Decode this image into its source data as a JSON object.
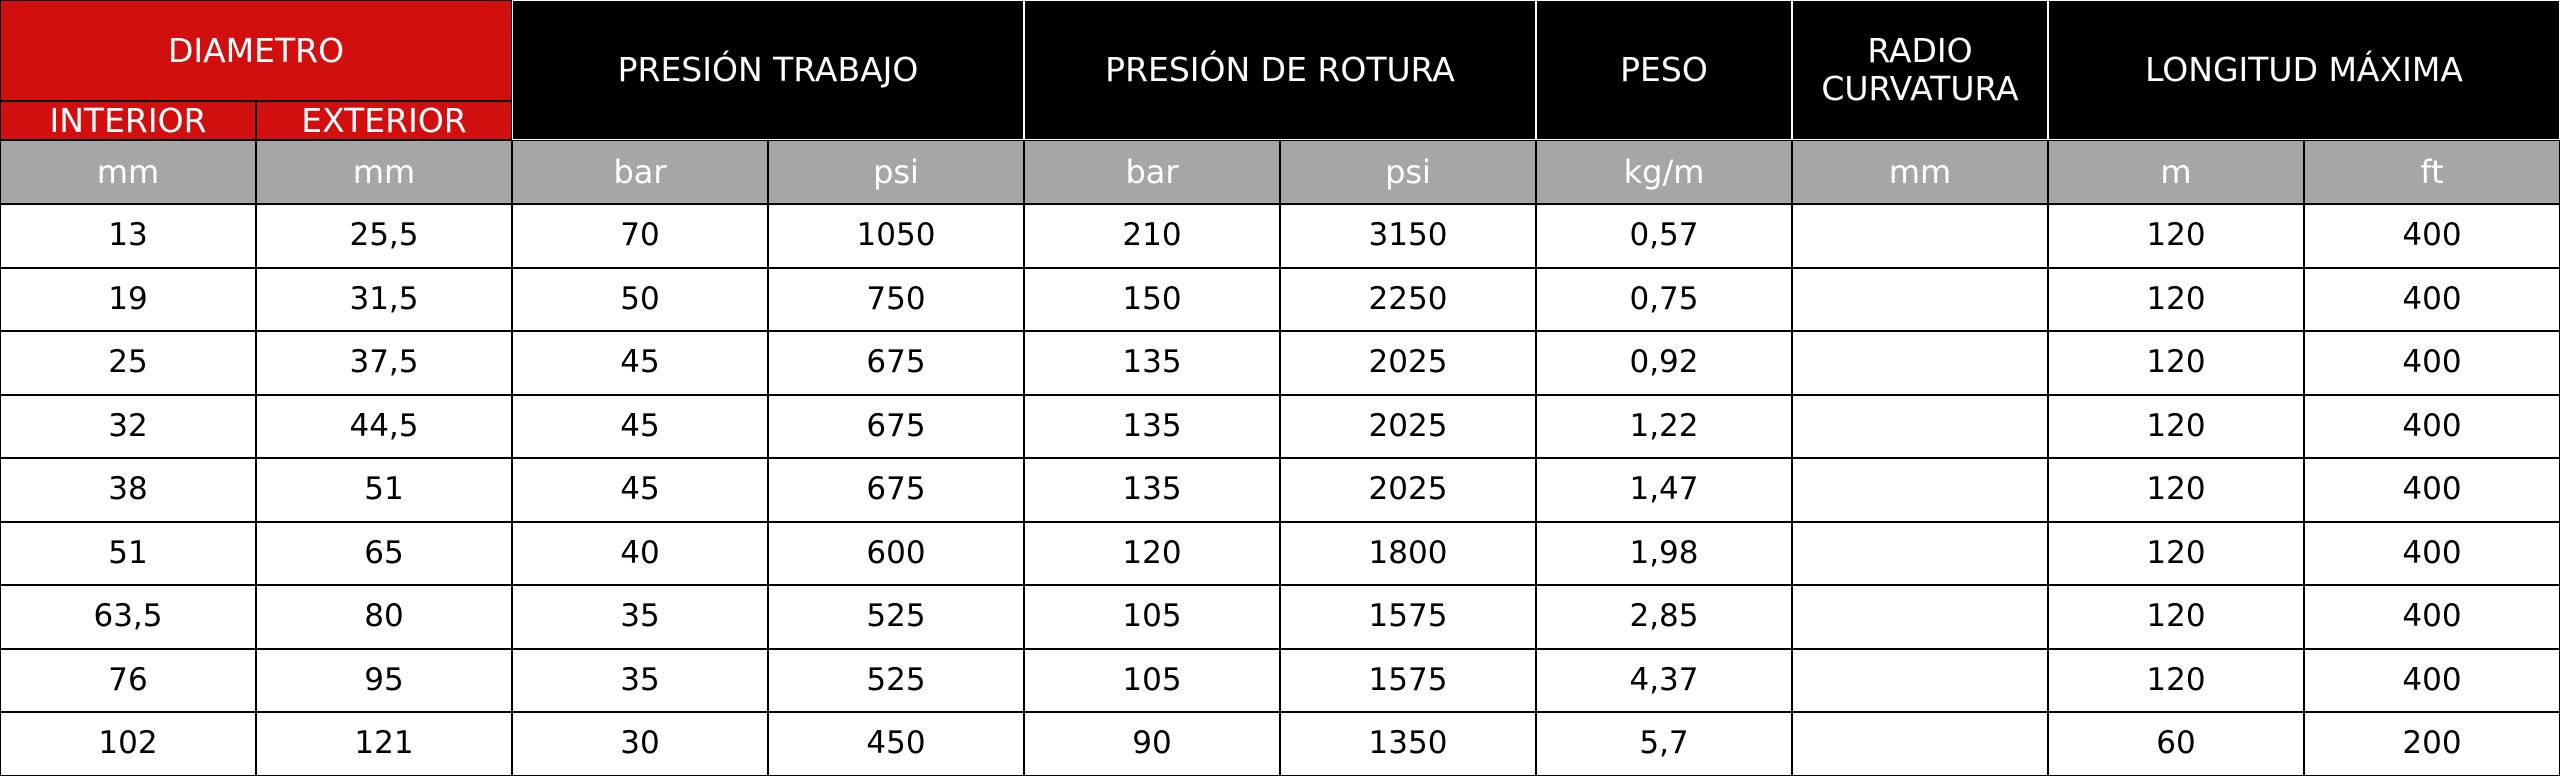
{
  "table": {
    "groups": [
      {
        "label": "DIAMETRO",
        "sub": [
          "INTERIOR",
          "EXTERIOR"
        ]
      },
      {
        "label": "PRESIÓN TRABAJO"
      },
      {
        "label": "PRESIÓN DE ROTURA"
      },
      {
        "label": "PESO"
      },
      {
        "label": "RADIO CURVATURA"
      },
      {
        "label": "LONGITUD MÁXIMA"
      }
    ],
    "units": [
      "mm",
      "mm",
      "bar",
      "psi",
      "bar",
      "psi",
      "kg/m",
      "mm",
      "m",
      "ft"
    ],
    "rows": [
      [
        "13",
        "25,5",
        "70",
        "1050",
        "210",
        "3150",
        "0,57",
        null,
        "120",
        "400"
      ],
      [
        "19",
        "31,5",
        "50",
        "750",
        "150",
        "2250",
        "0,75",
        null,
        "120",
        "400"
      ],
      [
        "25",
        "37,5",
        "45",
        "675",
        "135",
        "2025",
        "0,92",
        null,
        "120",
        "400"
      ],
      [
        "32",
        "44,5",
        "45",
        "675",
        "135",
        "2025",
        "1,22",
        null,
        "120",
        "400"
      ],
      [
        "38",
        "51",
        "45",
        "675",
        "135",
        "2025",
        "1,47",
        null,
        "120",
        "400"
      ],
      [
        "51",
        "65",
        "40",
        "600",
        "120",
        "1800",
        "1,98",
        null,
        "120",
        "400"
      ],
      [
        "63,5",
        "80",
        "35",
        "525",
        "105",
        "1575",
        "2,85",
        null,
        "120",
        "400"
      ],
      [
        "76",
        "95",
        "35",
        "525",
        "105",
        "1575",
        "4,37",
        null,
        "120",
        "400"
      ],
      [
        "102",
        "121",
        "30",
        "450",
        "90",
        "1350",
        "5,7",
        null,
        "60",
        "200"
      ]
    ]
  }
}
